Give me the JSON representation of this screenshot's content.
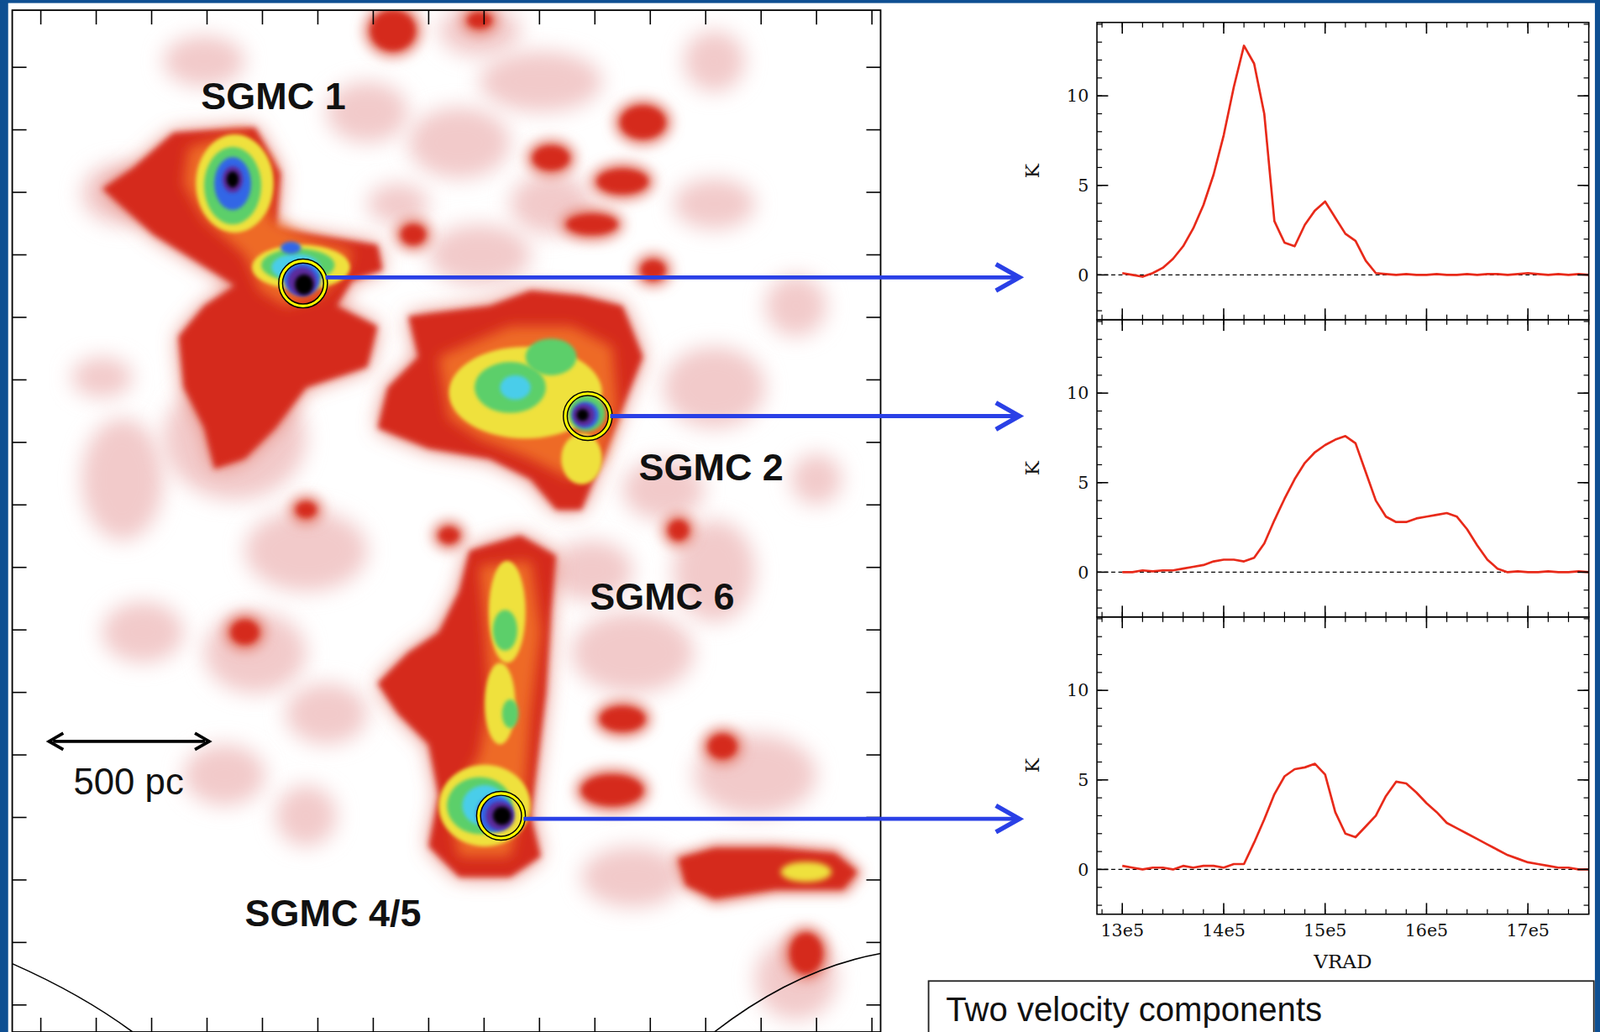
{
  "chart_data": [
    {
      "type": "line",
      "color": "#e82a1a",
      "y_label": "K",
      "tick_labels": "y",
      "xlim": [
        1275000,
        1760000
      ],
      "ylim": [
        -2.5,
        14.1
      ],
      "xticks": [
        {
          "value": 1300000,
          "label": "13e5"
        },
        {
          "value": 1400000,
          "label": "14e5"
        },
        {
          "value": 1500000,
          "label": "15e5"
        },
        {
          "value": 1600000,
          "label": "16e5"
        },
        {
          "value": 1700000,
          "label": "17e5"
        }
      ],
      "yticks": [
        0,
        5,
        10
      ],
      "x": [
        1300000,
        1310000,
        1320000,
        1330000,
        1340000,
        1350000,
        1360000,
        1370000,
        1380000,
        1390000,
        1400000,
        1410000,
        1420000,
        1430000,
        1440000,
        1450000,
        1460000,
        1470000,
        1480000,
        1490000,
        1500000,
        1510000,
        1520000,
        1530000,
        1540000,
        1550000,
        1560000,
        1570000,
        1580000,
        1590000,
        1600000,
        1610000,
        1620000,
        1630000,
        1640000,
        1650000,
        1660000,
        1670000,
        1680000,
        1690000,
        1700000,
        1710000,
        1720000,
        1730000,
        1740000,
        1750000,
        1760000
      ],
      "values": [
        0.1,
        0.0,
        -0.1,
        0.1,
        0.4,
        0.9,
        1.6,
        2.6,
        3.9,
        5.6,
        7.8,
        10.5,
        12.8,
        11.8,
        9.0,
        3.0,
        1.8,
        1.6,
        2.8,
        3.6,
        4.1,
        3.2,
        2.3,
        1.9,
        0.8,
        0.1,
        0.05,
        0.0,
        0.05,
        0.0,
        0.0,
        0.05,
        0.0,
        0.0,
        0.05,
        0.0,
        0.05,
        0.05,
        0.0,
        0.05,
        0.1,
        0.05,
        0.0,
        0.05,
        0.0,
        0.05,
        0.0
      ]
    },
    {
      "type": "line",
      "color": "#e82a1a",
      "y_label": "K",
      "tick_labels": "y",
      "xlim": [
        1275000,
        1760000
      ],
      "ylim": [
        -2.5,
        14.1
      ],
      "xticks": [
        {
          "value": 1300000,
          "label": "13e5"
        },
        {
          "value": 1400000,
          "label": "14e5"
        },
        {
          "value": 1500000,
          "label": "15e5"
        },
        {
          "value": 1600000,
          "label": "16e5"
        },
        {
          "value": 1700000,
          "label": "17e5"
        }
      ],
      "yticks": [
        0,
        5,
        10
      ],
      "x": [
        1300000,
        1310000,
        1320000,
        1330000,
        1340000,
        1350000,
        1360000,
        1370000,
        1380000,
        1390000,
        1400000,
        1410000,
        1420000,
        1430000,
        1440000,
        1450000,
        1460000,
        1470000,
        1480000,
        1490000,
        1500000,
        1510000,
        1520000,
        1530000,
        1540000,
        1550000,
        1560000,
        1570000,
        1580000,
        1590000,
        1600000,
        1610000,
        1620000,
        1630000,
        1640000,
        1650000,
        1660000,
        1670000,
        1680000,
        1690000,
        1700000,
        1710000,
        1720000,
        1730000,
        1740000,
        1750000,
        1760000
      ],
      "values": [
        0.0,
        0.0,
        0.1,
        0.05,
        0.1,
        0.1,
        0.2,
        0.3,
        0.4,
        0.6,
        0.7,
        0.7,
        0.6,
        0.8,
        1.6,
        2.9,
        4.1,
        5.2,
        6.1,
        6.7,
        7.1,
        7.4,
        7.6,
        7.2,
        5.6,
        4.0,
        3.1,
        2.8,
        2.8,
        3.0,
        3.1,
        3.2,
        3.3,
        3.1,
        2.4,
        1.5,
        0.7,
        0.2,
        0.0,
        0.05,
        0.0,
        0.0,
        0.05,
        0.0,
        0.0,
        0.05,
        0.0
      ]
    },
    {
      "type": "line",
      "color": "#e82a1a",
      "y_label": "K",
      "x_label": "VRAD",
      "xlim": [
        1275000,
        1760000
      ],
      "ylim": [
        -2.5,
        14.1
      ],
      "xticks": [
        {
          "value": 1300000,
          "label": "13e5"
        },
        {
          "value": 1400000,
          "label": "14e5"
        },
        {
          "value": 1500000,
          "label": "15e5"
        },
        {
          "value": 1600000,
          "label": "16e5"
        },
        {
          "value": 1700000,
          "label": "17e5"
        }
      ],
      "yticks": [
        0,
        5,
        10
      ],
      "x": [
        1300000,
        1310000,
        1320000,
        1330000,
        1340000,
        1350000,
        1360000,
        1370000,
        1380000,
        1390000,
        1400000,
        1410000,
        1420000,
        1430000,
        1440000,
        1450000,
        1460000,
        1470000,
        1480000,
        1490000,
        1500000,
        1510000,
        1520000,
        1530000,
        1540000,
        1550000,
        1560000,
        1570000,
        1580000,
        1590000,
        1600000,
        1610000,
        1620000,
        1630000,
        1640000,
        1650000,
        1660000,
        1670000,
        1680000,
        1690000,
        1700000,
        1710000,
        1720000,
        1730000,
        1740000,
        1750000,
        1760000
      ],
      "values": [
        0.2,
        0.1,
        0.0,
        0.1,
        0.1,
        0.0,
        0.2,
        0.1,
        0.2,
        0.2,
        0.1,
        0.3,
        0.3,
        1.5,
        2.8,
        4.2,
        5.2,
        5.6,
        5.7,
        5.9,
        5.3,
        3.2,
        2.0,
        1.8,
        2.4,
        3.0,
        4.1,
        4.9,
        4.8,
        4.3,
        3.7,
        3.2,
        2.6,
        2.3,
        2.0,
        1.7,
        1.4,
        1.1,
        0.8,
        0.6,
        0.4,
        0.3,
        0.2,
        0.1,
        0.1,
        0.0,
        0.0
      ]
    }
  ],
  "map": {
    "labels": [
      "SGMC 1",
      "SGMC 2",
      "SGMC 6",
      "SGMC 4/5"
    ],
    "scale_bar": "500 pc"
  },
  "caption": "Two velocity components"
}
